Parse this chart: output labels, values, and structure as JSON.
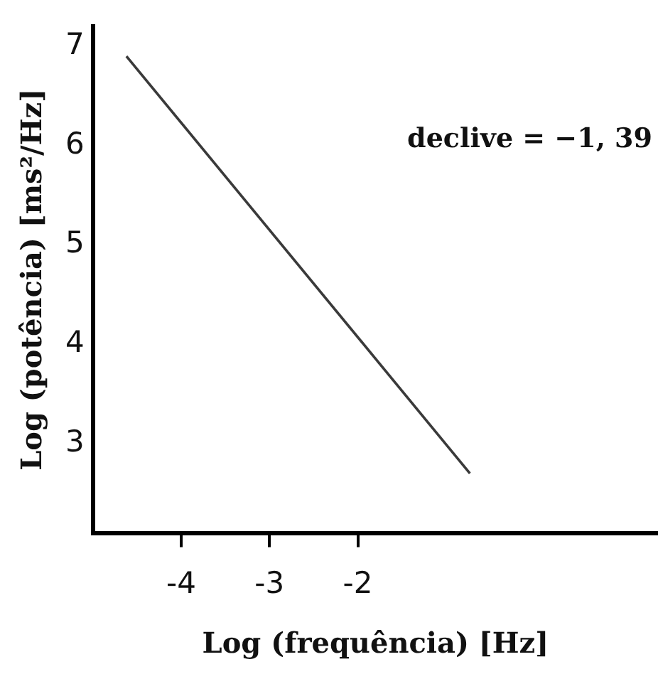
{
  "chart_data": {
    "type": "line",
    "xlabel": "Log (frequência) [Hz]",
    "ylabel": "Log (potência) [ms²/Hz]",
    "annotations": [
      "declive = −1, 39"
    ],
    "x": [
      -4.62,
      -0.73
    ],
    "series": [
      {
        "color": "#3a3a3a",
        "values": [
          6.9,
          2.7
        ]
      }
    ],
    "xlim": [
      -5,
      1.4
    ],
    "xticks": [
      -4,
      -3,
      -2
    ],
    "ylim": [
      2.1,
      7.2
    ],
    "yticks": [
      3,
      4,
      5,
      6,
      7
    ],
    "grid": false,
    "legend": false,
    "marker": "none",
    "line_style": "solid"
  }
}
